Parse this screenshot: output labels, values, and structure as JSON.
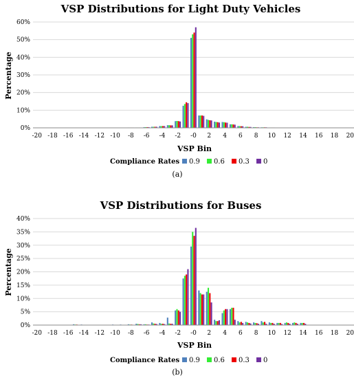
{
  "colors": [
    "#4f81bd",
    "#33ee33",
    "#ee0000",
    "#7030a0"
  ],
  "chart_data": [
    {
      "type": "bar",
      "title": "VSP Distributions for Light Duty Vehicles",
      "xlabel": "VSP Bin",
      "ylabel": "Percentage",
      "caption": "(a)",
      "legend_title": "Compliance Rates",
      "legend_position": "bottom",
      "ylim": [
        0,
        60
      ],
      "y_ticks": [
        "0%",
        "10%",
        "20%",
        "30%",
        "40%",
        "50%",
        "60%"
      ],
      "x_tick_labels": [
        "-20",
        "-18",
        "-16",
        "-14",
        "-12",
        "-10",
        "-8",
        "-6",
        "-4",
        "-2",
        "-0",
        "2",
        "4",
        "6",
        "8",
        "10",
        "12",
        "14",
        "16",
        "18",
        "20"
      ],
      "categories": [
        "-20",
        "-19",
        "-18",
        "-17",
        "-16",
        "-15",
        "-14",
        "-13",
        "-12",
        "-11",
        "-10",
        "-9",
        "-8",
        "-7",
        "-6",
        "-5",
        "-4",
        "-3",
        "-2",
        "-1",
        "-0",
        "1",
        "2",
        "3",
        "4",
        "5",
        "6",
        "7",
        "8",
        "9",
        "10",
        "11",
        "12",
        "13",
        "14",
        "15",
        "16",
        "17",
        "18",
        "19",
        "20"
      ],
      "series": [
        {
          "name": "0.9",
          "values": [
            0,
            0,
            0,
            0,
            0,
            0,
            0,
            0,
            0,
            0,
            0.1,
            0.1,
            0.2,
            0.2,
            0.4,
            0.6,
            1.0,
            1.5,
            3.8,
            12.5,
            51.0,
            7.0,
            4.8,
            3.5,
            3.3,
            2.0,
            1.0,
            0.6,
            0.4,
            0.3,
            0.2,
            0.1,
            0.1,
            0.1,
            0.1,
            0.1,
            0.1,
            0,
            0,
            0,
            0
          ]
        },
        {
          "name": "0.6",
          "values": [
            0,
            0,
            0,
            0,
            0,
            0,
            0,
            0,
            0,
            0,
            0.1,
            0.1,
            0.2,
            0.2,
            0.4,
            0.6,
            1.0,
            1.5,
            3.9,
            13.5,
            53.0,
            7.0,
            4.5,
            3.3,
            3.2,
            2.0,
            1.0,
            0.6,
            0.4,
            0.3,
            0.2,
            0.1,
            0.1,
            0.1,
            0.1,
            0.1,
            0.1,
            0,
            0,
            0,
            0
          ]
        },
        {
          "name": "0.3",
          "values": [
            0,
            0,
            0,
            0,
            0,
            0,
            0,
            0,
            0,
            0,
            0.1,
            0.1,
            0.2,
            0.2,
            0.4,
            0.6,
            1.0,
            1.4,
            3.8,
            14.5,
            54.0,
            7.0,
            4.3,
            3.2,
            3.0,
            1.9,
            0.9,
            0.5,
            0.3,
            0.3,
            0.2,
            0.1,
            0.1,
            0.1,
            0.1,
            0.1,
            0.1,
            0,
            0,
            0,
            0
          ]
        },
        {
          "name": "0",
          "values": [
            0,
            0,
            0,
            0,
            0,
            0,
            0,
            0,
            0,
            0,
            0.1,
            0.1,
            0.2,
            0.2,
            0.4,
            0.6,
            1.0,
            1.4,
            3.6,
            14.0,
            57.0,
            6.8,
            4.2,
            3.0,
            2.9,
            1.8,
            0.9,
            0.5,
            0.3,
            0.3,
            0.2,
            0.1,
            0.1,
            0.1,
            0.1,
            0.1,
            0.1,
            0,
            0,
            0,
            0
          ]
        }
      ]
    },
    {
      "type": "bar",
      "title": "VSP Distributions for Buses",
      "xlabel": "VSP Bin",
      "ylabel": "Percentage",
      "caption": "(b)",
      "legend_title": "Compliance Rates",
      "legend_position": "bottom",
      "ylim": [
        0,
        40
      ],
      "y_ticks": [
        "0%",
        "5%",
        "10%",
        "15%",
        "20%",
        "25%",
        "30%",
        "35%",
        "40%"
      ],
      "x_tick_labels": [
        "-20",
        "-18",
        "-16",
        "-14",
        "-12",
        "-10",
        "-8",
        "-6",
        "-4",
        "-2",
        "-0",
        "2",
        "4",
        "6",
        "8",
        "10",
        "12",
        "14",
        "16",
        "18",
        "20"
      ],
      "categories": [
        "-20",
        "-19",
        "-18",
        "-17",
        "-16",
        "-15",
        "-14",
        "-13",
        "-12",
        "-11",
        "-10",
        "-9",
        "-8",
        "-7",
        "-6",
        "-5",
        "-4",
        "-3",
        "-2",
        "-1",
        "-0",
        "1",
        "2",
        "3",
        "4",
        "5",
        "6",
        "7",
        "8",
        "9",
        "10",
        "11",
        "12",
        "13",
        "14",
        "15",
        "16",
        "17",
        "18",
        "19",
        "20"
      ],
      "series": [
        {
          "name": "0.9",
          "values": [
            0,
            0,
            0,
            0,
            0,
            0.3,
            0.2,
            0,
            0,
            0,
            0.2,
            0.2,
            0.3,
            0.5,
            0.3,
            1.0,
            0.8,
            2.8,
            5.5,
            17.5,
            29.5,
            13.0,
            12.5,
            2.0,
            4.5,
            6.0,
            1.5,
            1.2,
            1.0,
            1.5,
            1.0,
            0.8,
            0.8,
            0.8,
            0.8,
            0,
            0,
            0,
            0,
            0,
            0
          ]
        },
        {
          "name": "0.6",
          "values": [
            0,
            0,
            0,
            0,
            0,
            0.2,
            0.1,
            0,
            0,
            0,
            0.1,
            0.1,
            0.2,
            0.4,
            0.3,
            0.6,
            0.5,
            0.6,
            6.0,
            18.5,
            35.0,
            12.0,
            14.0,
            1.5,
            5.5,
            6.5,
            1.0,
            1.0,
            0.8,
            1.0,
            0.8,
            0.8,
            1.0,
            1.0,
            0.8,
            0,
            0,
            0,
            0,
            0,
            0
          ]
        },
        {
          "name": "0.3",
          "values": [
            0,
            0,
            0,
            0,
            0,
            0.2,
            0.1,
            0,
            0,
            0,
            0.1,
            0.1,
            0.2,
            0.3,
            0.2,
            0.5,
            0.5,
            0.5,
            5.5,
            19.0,
            33.5,
            11.5,
            12.0,
            1.5,
            6.0,
            6.5,
            1.2,
            0.8,
            0.7,
            1.2,
            0.8,
            0.8,
            0.8,
            0.8,
            0.8,
            0,
            0,
            0,
            0,
            0,
            0
          ]
        },
        {
          "name": "0",
          "values": [
            0,
            0,
            0,
            0,
            0,
            0.1,
            0.1,
            0,
            0,
            0,
            0.1,
            0.1,
            0.1,
            0.3,
            0.2,
            0.4,
            0.4,
            0.5,
            5.0,
            21.0,
            36.5,
            11.5,
            8.5,
            1.8,
            6.0,
            2.0,
            0.8,
            0.6,
            0.5,
            0.5,
            0.5,
            0.4,
            0.5,
            0.5,
            0.5,
            0,
            0,
            0,
            0,
            0,
            0
          ]
        }
      ]
    }
  ]
}
